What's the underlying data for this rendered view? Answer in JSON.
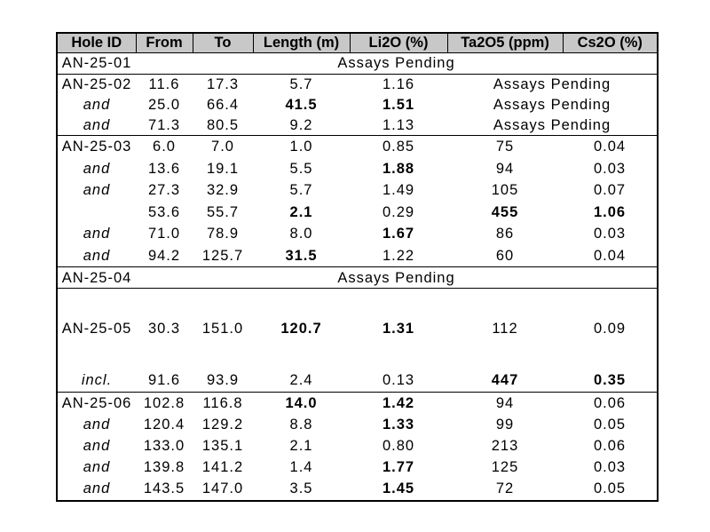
{
  "table": {
    "columns": [
      {
        "key": "hole-id",
        "label": "Hole ID"
      },
      {
        "key": "from",
        "label": "From"
      },
      {
        "key": "to",
        "label": "To"
      },
      {
        "key": "length-m",
        "label": "Length (m)"
      },
      {
        "key": "li2o-pct",
        "label": "Li2O (%)"
      },
      {
        "key": "ta2o5-ppm",
        "label": "Ta2O5 (ppm)"
      },
      {
        "key": "cs2o-pct",
        "label": "Cs2O (%)"
      }
    ],
    "assays_pending_label": "Assays Pending",
    "header_bg": "#c8c8c8",
    "border_color": "#000000",
    "rows": [
      {
        "hole": "AN-25-01",
        "pending": "full",
        "sep": true
      },
      {
        "hole": "AN-25-02",
        "from": "11.6",
        "to": "17.3",
        "length": "5.7",
        "li2o": "1.16",
        "pending": "tail"
      },
      {
        "hole": "and",
        "italic": true,
        "from": "25.0",
        "to": "66.4",
        "length": "41.5",
        "li2o": "1.51",
        "bold": [
          "length",
          "li2o"
        ],
        "pending": "tail"
      },
      {
        "hole": "and",
        "italic": true,
        "from": "71.3",
        "to": "80.5",
        "length": "9.2",
        "li2o": "1.13",
        "pending": "tail",
        "sep": true
      },
      {
        "hole": "AN-25-03",
        "from": "6.0",
        "to": "7.0",
        "length": "1.0",
        "li2o": "0.85",
        "ta2o5": "75",
        "cs2o": "0.04"
      },
      {
        "hole": "and",
        "italic": true,
        "from": "13.6",
        "to": "19.1",
        "length": "5.5",
        "li2o": "1.88",
        "bold": [
          "li2o"
        ],
        "ta2o5": "94",
        "cs2o": "0.03"
      },
      {
        "hole": "and",
        "italic": true,
        "from": "27.3",
        "to": "32.9",
        "length": "5.7",
        "li2o": "1.49",
        "ta2o5": "105",
        "cs2o": "0.07"
      },
      {
        "hole": "",
        "from": "53.6",
        "to": "55.7",
        "length": "2.1",
        "li2o": "0.29",
        "ta2o5": "455",
        "cs2o": "1.06",
        "bold": [
          "length",
          "ta2o5",
          "cs2o"
        ]
      },
      {
        "hole": "and",
        "italic": true,
        "from": "71.0",
        "to": "78.9",
        "length": "8.0",
        "li2o": "1.67",
        "bold": [
          "li2o"
        ],
        "ta2o5": "86",
        "cs2o": "0.03"
      },
      {
        "hole": "and",
        "italic": true,
        "from": "94.2",
        "to": "125.7",
        "length": "31.5",
        "li2o": "1.22",
        "bold": [
          "length"
        ],
        "ta2o5": "60",
        "cs2o": "0.04",
        "sep": true
      },
      {
        "hole": "AN-25-04",
        "pending": "full",
        "sep": true
      },
      {
        "spacer": true
      },
      {
        "hole": "AN-25-05",
        "from": "30.3",
        "to": "151.0",
        "length": "120.7",
        "li2o": "1.31",
        "bold": [
          "length",
          "li2o"
        ],
        "ta2o5": "112",
        "cs2o": "0.09",
        "tall": true
      },
      {
        "spacer": true
      },
      {
        "hole": "incl.",
        "italic": true,
        "from": "91.6",
        "to": "93.9",
        "length": "2.4",
        "li2o": "0.13",
        "ta2o5": "447",
        "cs2o": "0.35",
        "bold": [
          "ta2o5",
          "cs2o"
        ],
        "sep": true
      },
      {
        "hole": "AN-25-06",
        "from": "102.8",
        "to": "116.8",
        "length": "14.0",
        "li2o": "1.42",
        "bold": [
          "length",
          "li2o"
        ],
        "ta2o5": "94",
        "cs2o": "0.06"
      },
      {
        "hole": "and",
        "italic": true,
        "from": "120.4",
        "to": "129.2",
        "length": "8.8",
        "li2o": "1.33",
        "bold": [
          "li2o"
        ],
        "ta2o5": "99",
        "cs2o": "0.05"
      },
      {
        "hole": "and",
        "italic": true,
        "from": "133.0",
        "to": "135.1",
        "length": "2.1",
        "li2o": "0.80",
        "ta2o5": "213",
        "cs2o": "0.06"
      },
      {
        "hole": "and",
        "italic": true,
        "from": "139.8",
        "to": "141.2",
        "length": "1.4",
        "li2o": "1.77",
        "bold": [
          "li2o"
        ],
        "ta2o5": "125",
        "cs2o": "0.03"
      },
      {
        "hole": "and",
        "italic": true,
        "from": "143.5",
        "to": "147.0",
        "length": "3.5",
        "li2o": "1.45",
        "bold": [
          "li2o"
        ],
        "ta2o5": "72",
        "cs2o": "0.05"
      }
    ]
  }
}
